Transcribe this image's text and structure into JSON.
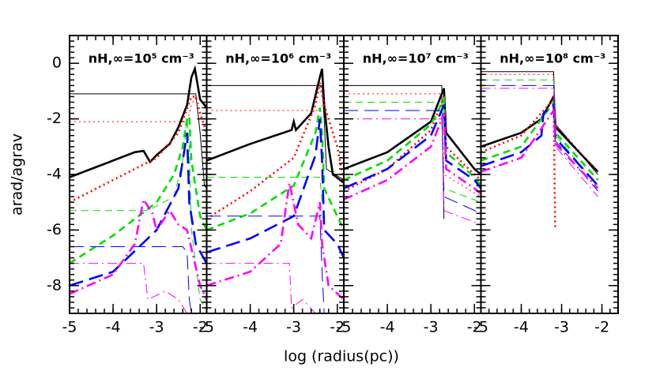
{
  "chart_data": [
    {
      "type": "line",
      "title": "nH,∞=10⁵ cm⁻³",
      "ylabel": "arad/agrav",
      "xlabel": "log (radius(pc))",
      "xlim": [
        -5,
        -1.85
      ],
      "xticks": [
        -5,
        -4,
        -3,
        -2
      ],
      "ylim": [
        -9,
        1
      ],
      "yticks": [
        -8,
        -6,
        -4,
        -2,
        0
      ],
      "series": [
        {
          "color": "#000000",
          "style": "solid",
          "width": "thick",
          "x": [
            -5,
            -4.5,
            -4,
            -3.5,
            -3.3,
            -3.15,
            -3.0,
            -2.7,
            -2.5,
            -2.3,
            -2.2,
            -2.12,
            -2.0,
            -1.85
          ],
          "values": [
            -4.1,
            -3.8,
            -3.5,
            -3.2,
            -3.15,
            -3.55,
            -3.3,
            -2.9,
            -2.3,
            -1.5,
            -0.5,
            -0.2,
            -1.3,
            -1.6
          ]
        },
        {
          "color": "#000000",
          "style": "solid",
          "width": "thin",
          "x": [
            -5,
            -2.2,
            -2.1,
            -2.0,
            -1.9,
            -1.85
          ],
          "values": [
            -1.1,
            -1.1,
            -1.1,
            -2.5,
            -4.4,
            -4.5
          ]
        },
        {
          "color": "#ff0000",
          "style": "dotted",
          "width": "thick",
          "x": [
            -5,
            -4,
            -3,
            -2.5,
            -2.2,
            -2.1,
            -2.0,
            -1.85
          ],
          "values": [
            -5,
            -4.2,
            -3.4,
            -2.5,
            -1.2,
            -1.2,
            -1.8,
            -2.5
          ]
        },
        {
          "color": "#ff0000",
          "style": "dotted",
          "width": "thin",
          "x": [
            -5,
            -2.3,
            -2.2,
            -2.1
          ],
          "values": [
            -2.1,
            -2.1,
            -1.5,
            -1.2
          ]
        },
        {
          "color": "#00dd00",
          "style": "dashed",
          "width": "thick",
          "x": [
            -5,
            -4,
            -3,
            -2.6,
            -2.4,
            -2.3,
            -2.25,
            -2.2,
            -2.0,
            -1.85
          ],
          "values": [
            -7.2,
            -6.2,
            -5,
            -4,
            -3,
            -2,
            -1.9,
            -3.5,
            -5.5,
            -6
          ]
        },
        {
          "color": "#00dd00",
          "style": "dashed",
          "width": "thin",
          "x": [
            -5,
            -3.2,
            -2.6,
            -2.4,
            -2.3,
            -2.25,
            -2.2,
            -2.0,
            -1.85
          ],
          "values": [
            -5.3,
            -5.3,
            -4.8,
            -3.5,
            -2,
            -3,
            -6,
            -8.5,
            -8.9
          ]
        },
        {
          "color": "#0000ff",
          "style": "longdash",
          "width": "thick",
          "x": [
            -5,
            -4,
            -3,
            -2.5,
            -2.35,
            -2.3,
            -2.25,
            -2.1,
            -1.85
          ],
          "values": [
            -8,
            -7.5,
            -6,
            -4.5,
            -3,
            -2.5,
            -5,
            -6.5,
            -7.2
          ]
        },
        {
          "color": "#0000ff",
          "style": "longdash",
          "width": "thin",
          "x": [
            -5,
            -2.4,
            -2.3,
            -2.25,
            -2.2
          ],
          "values": [
            -6.6,
            -6.6,
            -6.8,
            -8.5,
            -9
          ]
        },
        {
          "color": "#ff00ff",
          "style": "dashdot",
          "width": "thick",
          "x": [
            -5,
            -4,
            -3.5,
            -3.3,
            -3.1,
            -3.0,
            -2.7,
            -2.5,
            -2.3,
            -2.0,
            -1.85
          ],
          "values": [
            -8.3,
            -7.6,
            -6.5,
            -4.9,
            -5.4,
            -6.0,
            -5.3,
            -5.8,
            -6,
            -8,
            -8.5
          ]
        },
        {
          "color": "#ff00ff",
          "style": "dashdot",
          "width": "thin",
          "x": [
            -5,
            -3.3,
            -3.2,
            -2.8,
            -2.5,
            -2.3
          ],
          "values": [
            -7.2,
            -7.2,
            -8.5,
            -8.2,
            -8.5,
            -9
          ]
        }
      ]
    },
    {
      "type": "line",
      "title": "nH,∞=10⁶ cm⁻³",
      "xlim": [
        -5,
        -1.85
      ],
      "xticks": [
        -5,
        -4,
        -3,
        -2
      ],
      "series": [
        {
          "color": "#000000",
          "style": "solid",
          "width": "thick",
          "x": [
            -5,
            -4,
            -3.05,
            -3.0,
            -2.95,
            -2.6,
            -2.4,
            -2.35,
            -2.3,
            -2.2,
            -2.1,
            -1.85
          ],
          "values": [
            -3.5,
            -2.9,
            -2.4,
            -2.1,
            -2.4,
            -1.8,
            -0.5,
            -0.2,
            -1.5,
            -3,
            -4,
            -4.3
          ]
        },
        {
          "color": "#000000",
          "style": "solid",
          "width": "thin",
          "x": [
            -5,
            -2.35,
            -2.3,
            -2.25,
            -1.85
          ],
          "values": [
            -0.8,
            -0.8,
            -2,
            -3.8,
            -4.2
          ]
        },
        {
          "color": "#ff0000",
          "style": "dotted",
          "width": "thick",
          "x": [
            -5,
            -4,
            -3,
            -2.5,
            -2.4,
            -2.3,
            -2.0,
            -1.85
          ],
          "values": [
            -5.6,
            -4.6,
            -3.4,
            -1.5,
            -0.7,
            -1.5,
            -3,
            -4.3
          ]
        },
        {
          "color": "#ff0000",
          "style": "dotted",
          "width": "thin",
          "x": [
            -5,
            -2.4,
            -2.35
          ],
          "values": [
            -1.7,
            -1.7,
            -1.5
          ]
        },
        {
          "color": "#00dd00",
          "style": "dashed",
          "width": "thick",
          "x": [
            -5,
            -4,
            -3,
            -2.5,
            -2.4,
            -2.35,
            -2.3,
            -2.0,
            -1.85
          ],
          "values": [
            -6,
            -5.4,
            -4.4,
            -2.5,
            -1.6,
            -2.5,
            -4.5,
            -5.5,
            -6
          ]
        },
        {
          "color": "#00dd00",
          "style": "dashed",
          "width": "thin",
          "x": [
            -5,
            -2.4,
            -2.35
          ],
          "values": [
            -4.1,
            -4.1,
            -5
          ]
        },
        {
          "color": "#0000ff",
          "style": "longdash",
          "width": "thick",
          "x": [
            -5,
            -4,
            -3,
            -2.5,
            -2.4,
            -2.35,
            -2.3,
            -2.0,
            -1.85
          ],
          "values": [
            -6.8,
            -6.3,
            -5.5,
            -3.3,
            -2,
            -3.5,
            -6,
            -6.5,
            -7
          ]
        },
        {
          "color": "#0000ff",
          "style": "longdash",
          "width": "thin",
          "x": [
            -5,
            -2.4,
            -2.35,
            -2.3
          ],
          "values": [
            -5.5,
            -5.5,
            -7.5,
            -9
          ]
        },
        {
          "color": "#ff00ff",
          "style": "dashdot",
          "width": "thick",
          "x": [
            -5,
            -4,
            -3.3,
            -3.1,
            -2.9,
            -2.6,
            -2.4,
            -2.35,
            -2.2,
            -1.85
          ],
          "values": [
            -8,
            -7.5,
            -6.5,
            -4.3,
            -5.8,
            -6.3,
            -5,
            -6.5,
            -8,
            -8.5
          ]
        },
        {
          "color": "#ff00ff",
          "style": "dashdot",
          "width": "thin",
          "x": [
            -5,
            -3.1,
            -3.05,
            -2.8,
            -2.5
          ],
          "values": [
            -7.2,
            -7.2,
            -8.8,
            -8.5,
            -9
          ]
        }
      ]
    },
    {
      "type": "line",
      "title": "nH,∞=10⁷ cm⁻³",
      "xlim": [
        -5,
        -1.85
      ],
      "xticks": [
        -5,
        -4,
        -3,
        -2
      ],
      "series": [
        {
          "color": "#000000",
          "style": "solid",
          "width": "thick",
          "x": [
            -5,
            -4,
            -3,
            -2.7,
            -2.65,
            -2.4,
            -2,
            -1.85
          ],
          "values": [
            -3.8,
            -3.2,
            -2.1,
            -0.9,
            -2.5,
            -3,
            -3.8,
            -4.0
          ]
        },
        {
          "color": "#000000",
          "style": "solid",
          "width": "thin",
          "x": [
            -5,
            -2.75,
            -2.7
          ],
          "values": [
            -0.8,
            -0.8,
            -5.6
          ]
        },
        {
          "color": "#ff0000",
          "style": "dotted",
          "width": "thick",
          "x": [
            -5,
            -4,
            -3,
            -2.7,
            -2.65,
            -2,
            -1.85
          ],
          "values": [
            -4.6,
            -3.8,
            -2.4,
            -1.2,
            -3,
            -4,
            -4.2
          ]
        },
        {
          "color": "#ff0000",
          "style": "dotted",
          "width": "thin",
          "x": [
            -5,
            -2.75,
            -2.7,
            -1.85
          ],
          "values": [
            -1.1,
            -1.1,
            -4,
            -4.8
          ]
        },
        {
          "color": "#00dd00",
          "style": "dashed",
          "width": "thick",
          "x": [
            -5,
            -4,
            -3,
            -2.7,
            -2.65,
            -2,
            -1.85
          ],
          "values": [
            -4.2,
            -3.5,
            -2.2,
            -1.3,
            -3.2,
            -4.1,
            -4.4
          ]
        },
        {
          "color": "#00dd00",
          "style": "dashed",
          "width": "thin",
          "x": [
            -5,
            -2.75,
            -2.7,
            -1.85
          ],
          "values": [
            -1.4,
            -1.4,
            -4.5,
            -5
          ]
        },
        {
          "color": "#0000ff",
          "style": "longdash",
          "width": "thick",
          "x": [
            -5,
            -4,
            -3,
            -2.7,
            -2.65,
            -2,
            -1.85
          ],
          "values": [
            -4.5,
            -3.8,
            -2.6,
            -1.5,
            -3.5,
            -4.2,
            -4.5
          ]
        },
        {
          "color": "#0000ff",
          "style": "longdash",
          "width": "thin",
          "x": [
            -5,
            -2.75,
            -2.7,
            -1.85
          ],
          "values": [
            -1.7,
            -1.7,
            -4.8,
            -5.4
          ]
        },
        {
          "color": "#ff00ff",
          "style": "dashdot",
          "width": "thick",
          "x": [
            -5,
            -4,
            -3,
            -2.7,
            -2.65,
            -2,
            -1.85
          ],
          "values": [
            -4.9,
            -4.2,
            -3,
            -1.8,
            -3.8,
            -4.5,
            -4.7
          ]
        },
        {
          "color": "#ff00ff",
          "style": "dashdot",
          "width": "thin",
          "x": [
            -5,
            -2.75,
            -2.7,
            -1.85
          ],
          "values": [
            -2,
            -2,
            -5.3,
            -5.8
          ]
        }
      ]
    },
    {
      "type": "line",
      "title": "nH,∞=10⁸ cm⁻³",
      "xlim": [
        -5,
        -1.6
      ],
      "xticks": [
        -5,
        -4,
        -3,
        -2
      ],
      "series": [
        {
          "color": "#000000",
          "style": "solid",
          "width": "thick",
          "x": [
            -5,
            -4,
            -3.5,
            -3.2,
            -3.15,
            -2.5,
            -2.1
          ],
          "values": [
            -3,
            -2.5,
            -2,
            -1.2,
            -2.3,
            -3.3,
            -3.9
          ]
        },
        {
          "color": "#000000",
          "style": "solid",
          "width": "thin",
          "x": [
            -5,
            -3.2,
            -3.15,
            -2.1
          ],
          "values": [
            -0.3,
            -0.3,
            -2.2,
            -4
          ]
        },
        {
          "color": "#ff0000",
          "style": "dotted",
          "width": "thick",
          "x": [
            -5,
            -4,
            -3.2,
            -3.16
          ],
          "values": [
            -3.2,
            -2.6,
            -1.3,
            -5.9
          ]
        },
        {
          "color": "#ff0000",
          "style": "dotted",
          "width": "thin",
          "x": [
            -5,
            -3.2,
            -3.15,
            -2.1
          ],
          "values": [
            -0.4,
            -0.4,
            -2.2,
            -3.9
          ]
        },
        {
          "color": "#00dd00",
          "style": "dashed",
          "width": "thick",
          "x": [
            -5,
            -4,
            -3.2,
            -3.15,
            -2.1
          ],
          "values": [
            -3.5,
            -3,
            -1.4,
            -2.5,
            -4.2
          ]
        },
        {
          "color": "#00dd00",
          "style": "dashed",
          "width": "thin",
          "x": [
            -5,
            -3.2,
            -3.15,
            -2.1
          ],
          "values": [
            -0.6,
            -0.6,
            -2.6,
            -4.4
          ]
        },
        {
          "color": "#0000ff",
          "style": "longdash",
          "width": "thick",
          "x": [
            -5,
            -4,
            -3.5,
            -3.45,
            -3.2,
            -3.15,
            -2.1
          ],
          "values": [
            -3.7,
            -3.2,
            -2.6,
            -1.8,
            -1.5,
            -2.7,
            -4.4
          ]
        },
        {
          "color": "#0000ff",
          "style": "longdash",
          "width": "thin",
          "x": [
            -5,
            -3.2,
            -3.15,
            -2.1
          ],
          "values": [
            -0.8,
            -0.8,
            -2.8,
            -4.6
          ]
        },
        {
          "color": "#ff00ff",
          "style": "dashdot",
          "width": "thick",
          "x": [
            -5,
            -4,
            -3.2,
            -3.15,
            -2.1
          ],
          "values": [
            -3.9,
            -3.4,
            -1.7,
            -2.9,
            -4.5
          ]
        },
        {
          "color": "#ff00ff",
          "style": "dashdot",
          "width": "thin",
          "x": [
            -5,
            -3.2,
            -3.15,
            -2.1
          ],
          "values": [
            -0.9,
            -0.9,
            -3,
            -4.8
          ]
        }
      ]
    }
  ]
}
